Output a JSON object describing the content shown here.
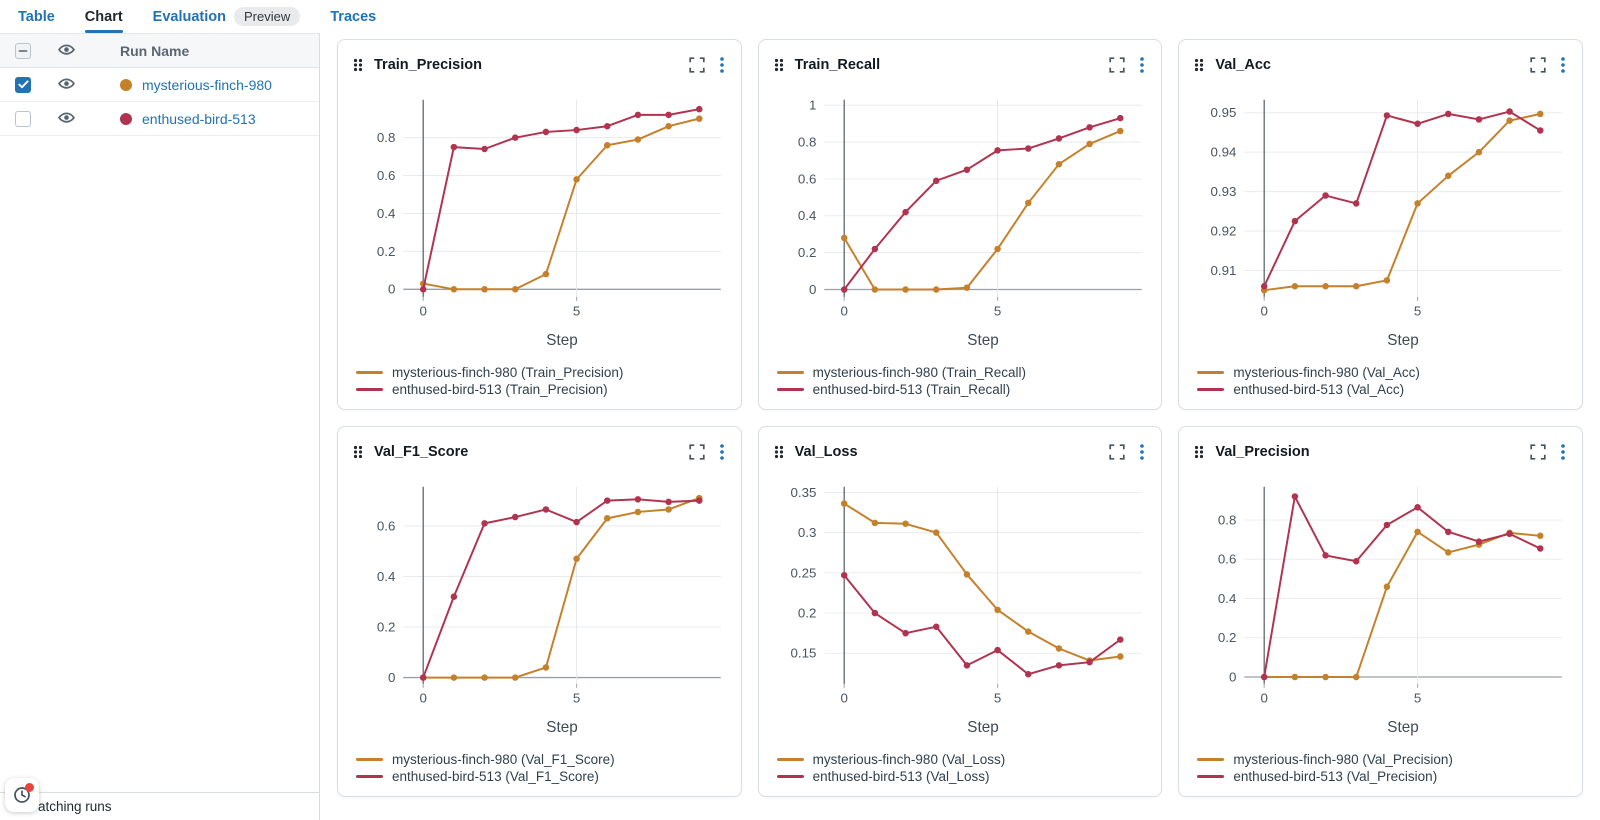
{
  "tab_bar": {
    "tabs": [
      {
        "label": "Table",
        "active": false,
        "badge": ""
      },
      {
        "label": "Chart",
        "active": true,
        "badge": ""
      },
      {
        "label": "Evaluation",
        "active": false,
        "badge": "Preview"
      },
      {
        "label": "Traces",
        "active": false,
        "badge": ""
      }
    ]
  },
  "sidebar": {
    "header": {
      "run_name_label": "Run Name",
      "select_all_state": "indeterminate"
    },
    "runs": [
      {
        "name": "mysterious-finch-980",
        "color": "#c5802b",
        "selected": true,
        "visible": true
      },
      {
        "name": "enthused-bird-513",
        "color": "#b0334f",
        "selected": false,
        "visible": true
      }
    ],
    "footer": {
      "text": "atching runs"
    }
  },
  "colors": {
    "accent": "#2272b4",
    "grid": "#e8ebee",
    "grid_x": "#e4e8eb",
    "zero_line": "#9aa0a6",
    "axis_line": "#5f666c",
    "tick_text": "#4a5560",
    "step_text": "#3f4a55",
    "notification_dot": "#e8453c"
  },
  "chart_data": [
    {
      "type": "line",
      "title": "Train_Precision",
      "xlabel": "Step",
      "x": [
        0,
        1,
        2,
        3,
        4,
        5,
        6,
        7,
        8,
        9
      ],
      "x_ticks": [
        0,
        5
      ],
      "y_ticks": [
        0,
        0.2,
        0.4,
        0.6,
        0.8
      ],
      "ylim": [
        -0.04,
        1.0
      ],
      "series": [
        {
          "name": "mysterious-finch-980",
          "legend": "mysterious-finch-980 (Train_Precision)",
          "color": "#c5802b",
          "values": [
            0.03,
            0,
            0,
            0,
            0.08,
            0.58,
            0.76,
            0.79,
            0.86,
            0.9
          ]
        },
        {
          "name": "enthused-bird-513",
          "legend": "enthused-bird-513 (Train_Precision)",
          "color": "#b0334f",
          "values": [
            0,
            0.75,
            0.74,
            0.8,
            0.83,
            0.84,
            0.86,
            0.92,
            0.92,
            0.95
          ]
        }
      ]
    },
    {
      "type": "line",
      "title": "Train_Recall",
      "xlabel": "Step",
      "x": [
        0,
        1,
        2,
        3,
        4,
        5,
        6,
        7,
        8,
        9
      ],
      "x_ticks": [
        0,
        5
      ],
      "y_ticks": [
        0,
        0.2,
        0.4,
        0.6,
        0.8,
        1
      ],
      "ylim": [
        -0.04,
        1.03
      ],
      "series": [
        {
          "name": "mysterious-finch-980",
          "legend": "mysterious-finch-980 (Train_Recall)",
          "color": "#c5802b",
          "values": [
            0.28,
            0,
            0,
            0,
            0.01,
            0.22,
            0.47,
            0.68,
            0.79,
            0.86
          ]
        },
        {
          "name": "enthused-bird-513",
          "legend": "enthused-bird-513 (Train_Recall)",
          "color": "#b0334f",
          "values": [
            0,
            0.22,
            0.42,
            0.59,
            0.65,
            0.755,
            0.765,
            0.82,
            0.88,
            0.93
          ]
        }
      ]
    },
    {
      "type": "line",
      "title": "Val_Acc",
      "xlabel": "Step",
      "x": [
        0,
        1,
        2,
        3,
        4,
        5,
        6,
        7,
        8,
        9
      ],
      "x_ticks": [
        0,
        5
      ],
      "y_ticks": [
        0.91,
        0.92,
        0.93,
        0.94,
        0.95
      ],
      "ylim": [
        0.9033,
        0.9533
      ],
      "series": [
        {
          "name": "mysterious-finch-980",
          "legend": "mysterious-finch-980 (Val_Acc)",
          "color": "#c5802b",
          "values": [
            0.905,
            0.906,
            0.906,
            0.906,
            0.9075,
            0.927,
            0.934,
            0.94,
            0.948,
            0.9497
          ]
        },
        {
          "name": "enthused-bird-513",
          "legend": "enthused-bird-513 (Val_Acc)",
          "color": "#b0334f",
          "values": [
            0.906,
            0.9225,
            0.929,
            0.927,
            0.9493,
            0.9472,
            0.9497,
            0.9483,
            0.9503,
            0.9455
          ]
        }
      ]
    },
    {
      "type": "line",
      "title": "Val_F1_Score",
      "xlabel": "Step",
      "x": [
        0,
        1,
        2,
        3,
        4,
        5,
        6,
        7,
        8,
        9
      ],
      "x_ticks": [
        0,
        5
      ],
      "y_ticks": [
        0,
        0.2,
        0.4,
        0.6
      ],
      "ylim": [
        -0.025,
        0.755
      ],
      "series": [
        {
          "name": "mysterious-finch-980",
          "legend": "mysterious-finch-980 (Val_F1_Score)",
          "color": "#c5802b",
          "values": [
            0,
            0,
            0,
            0,
            0.04,
            0.47,
            0.63,
            0.655,
            0.665,
            0.71
          ]
        },
        {
          "name": "enthused-bird-513",
          "legend": "enthused-bird-513 (Val_F1_Score)",
          "color": "#b0334f",
          "values": [
            0,
            0.32,
            0.61,
            0.635,
            0.665,
            0.615,
            0.7,
            0.705,
            0.695,
            0.7
          ]
        }
      ]
    },
    {
      "type": "line",
      "title": "Val_Loss",
      "xlabel": "Step",
      "x": [
        0,
        1,
        2,
        3,
        4,
        5,
        6,
        7,
        8,
        9
      ],
      "x_ticks": [
        0,
        5
      ],
      "y_ticks": [
        0.15,
        0.2,
        0.25,
        0.3,
        0.35
      ],
      "ylim": [
        0.112,
        0.357
      ],
      "series": [
        {
          "name": "mysterious-finch-980",
          "legend": "mysterious-finch-980 (Val_Loss)",
          "color": "#c5802b",
          "values": [
            0.336,
            0.312,
            0.311,
            0.3,
            0.248,
            0.204,
            0.177,
            0.156,
            0.141,
            0.146
          ]
        },
        {
          "name": "enthused-bird-513",
          "legend": "enthused-bird-513 (Val_Loss)",
          "color": "#b0334f",
          "values": [
            0.247,
            0.2,
            0.175,
            0.183,
            0.135,
            0.154,
            0.124,
            0.135,
            0.139,
            0.167
          ]
        }
      ]
    },
    {
      "type": "line",
      "title": "Val_Precision",
      "xlabel": "Step",
      "x": [
        0,
        1,
        2,
        3,
        4,
        5,
        6,
        7,
        8,
        9
      ],
      "x_ticks": [
        0,
        5
      ],
      "y_ticks": [
        0,
        0.2,
        0.4,
        0.6,
        0.8
      ],
      "ylim": [
        -0.035,
        0.97
      ],
      "series": [
        {
          "name": "mysterious-finch-980",
          "legend": "mysterious-finch-980 (Val_Precision)",
          "color": "#c5802b",
          "values": [
            0,
            0,
            0,
            0,
            0.46,
            0.74,
            0.635,
            0.675,
            0.735,
            0.72
          ]
        },
        {
          "name": "enthused-bird-513",
          "legend": "enthused-bird-513 (Val_Precision)",
          "color": "#b0334f",
          "values": [
            0,
            0.92,
            0.62,
            0.59,
            0.775,
            0.865,
            0.74,
            0.69,
            0.73,
            0.655
          ]
        }
      ]
    }
  ]
}
